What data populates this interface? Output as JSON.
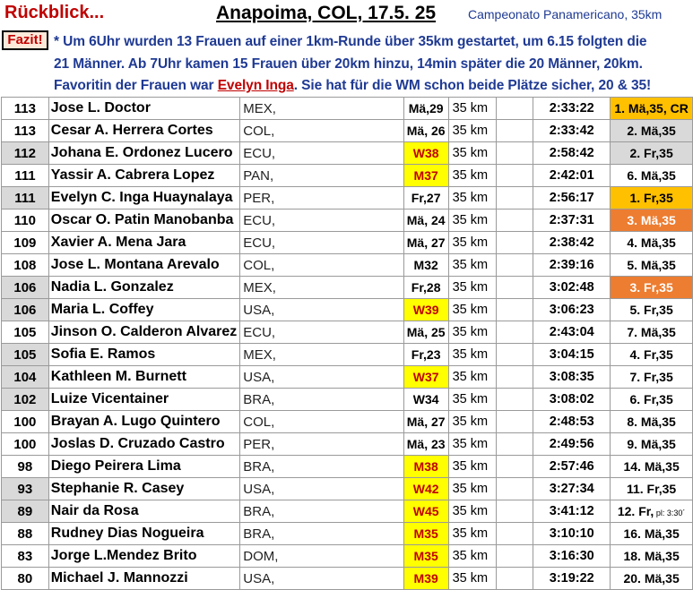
{
  "header": {
    "left": "Rückblick...",
    "middle": "Anapoima, COL, 17.5. 25",
    "right": "Campeonato Panamericano, 35km"
  },
  "fazit": {
    "label": "Fazit!",
    "line1": "* Um 6Uhr wurden 13 Frauen auf einer 1km-Runde über 35km gestartet, um 6.15 folgten die",
    "line2": "21 Männer. Ab 7Uhr kamen 15 Frauen über 20km hinzu, 14min später die 20 Männer, 20km.",
    "line3_a": "Favoritin der Frauen war ",
    "line3_name": "Evelyn Inga",
    "line3_b": ". Sie hat für die WM schon beide Plätze sicher, 20 & 35!"
  },
  "colors": {
    "title_red": "#c00000",
    "text_blue": "#1f3a93",
    "gold": "#ffc000",
    "silver": "#d9d9d9",
    "bronze": "#ed7d31",
    "age_highlight": "#ffff00"
  },
  "rows": [
    {
      "pts": "113",
      "name": "Jose L. Doctor",
      "nat": "MEX,",
      "age": "Mä,29",
      "dist": "35 km",
      "time": "2:33:22",
      "result": "1. Mä,35, CR",
      "medal": "gold"
    },
    {
      "pts": "113",
      "name": "Cesar A. Herrera Cortes",
      "nat": "COL,",
      "age": "Mä, 26",
      "dist": "35 km",
      "time": "2:33:42",
      "result": "2. Mä,35",
      "medal": "silver"
    },
    {
      "pts": "112",
      "name": "Johana E. Ordonez Lucero",
      "nat": "ECU,",
      "age": "W38",
      "dist": "35 km",
      "time": "2:58:42",
      "result": "2. Fr,35",
      "medal": "silver",
      "grey": true,
      "yellow": true
    },
    {
      "pts": "111",
      "name": "Yassir A. Cabrera Lopez",
      "nat": "PAN,",
      "age": "M37",
      "dist": "35 km",
      "time": "2:42:01",
      "result": "6. Mä,35",
      "yellow": true
    },
    {
      "pts": "111",
      "name": "Evelyn C. Inga Huaynalaya",
      "nat": "PER,",
      "age": "Fr,27",
      "dist": "35 km",
      "time": "2:56:17",
      "result": "1. Fr,35",
      "medal": "gold",
      "grey": true
    },
    {
      "pts": "110",
      "name": "Oscar O. Patin Manobanba",
      "nat": "ECU,",
      "age": "Mä, 24",
      "dist": "35 km",
      "time": "2:37:31",
      "result": "3. Mä,35",
      "medal": "bronze"
    },
    {
      "pts": "109",
      "name": "Xavier A. Mena Jara",
      "nat": "ECU,",
      "age": "Mä, 27",
      "dist": "35 km",
      "time": "2:38:42",
      "result": "4. Mä,35"
    },
    {
      "pts": "108",
      "name": "Jose L. Montana Arevalo",
      "nat": "COL,",
      "age": "M32",
      "dist": "35 km",
      "time": "2:39:16",
      "result": "5. Mä,35"
    },
    {
      "pts": "106",
      "name": "Nadia L. Gonzalez",
      "nat": "MEX,",
      "age": "Fr,28",
      "dist": "35 km",
      "time": "3:02:48",
      "result": "3. Fr,35",
      "medal": "bronze",
      "grey": true
    },
    {
      "pts": "106",
      "name": "Maria L. Coffey",
      "nat": "USA,",
      "age": "W39",
      "dist": "35 km",
      "time": "3:06:23",
      "result": "5. Fr,35",
      "grey": true,
      "yellow": true
    },
    {
      "pts": "105",
      "name": "Jinson O. Calderon Alvarez",
      "nat": "ECU,",
      "age": "Mä, 25",
      "dist": "35 km",
      "time": "2:43:04",
      "result": "7. Mä,35"
    },
    {
      "pts": "105",
      "name": "Sofia E. Ramos",
      "nat": "MEX,",
      "age": "Fr,23",
      "dist": "35 km",
      "time": "3:04:15",
      "result": "4. Fr,35",
      "grey": true
    },
    {
      "pts": "104",
      "name": "Kathleen M. Burnett",
      "nat": "USA,",
      "age": "W37",
      "dist": "35 km",
      "time": "3:08:35",
      "result": "7. Fr,35",
      "grey": true,
      "yellow": true
    },
    {
      "pts": "102",
      "name": "Luize Vicentainer",
      "nat": "BRA,",
      "age": "W34",
      "dist": "35 km",
      "time": "3:08:02",
      "result": "6. Fr,35",
      "grey": true
    },
    {
      "pts": "100",
      "name": "Brayan A. Lugo Quintero",
      "nat": "COL,",
      "age": "Mä, 27",
      "dist": "35 km",
      "time": "2:48:53",
      "result": "8. Mä,35"
    },
    {
      "pts": "100",
      "name": "Joslas D. Cruzado Castro",
      "nat": "PER,",
      "age": "Mä, 23",
      "dist": "35 km",
      "time": "2:49:56",
      "result": "9. Mä,35"
    },
    {
      "pts": "98",
      "name": "Diego Peirera Lima",
      "nat": "BRA,",
      "age": "M38",
      "dist": "35 km",
      "time": "2:57:46",
      "result": "14. Mä,35",
      "yellow": true
    },
    {
      "pts": "93",
      "name": "Stephanie R. Casey",
      "nat": "USA,",
      "age": "W42",
      "dist": "35 km",
      "time": "3:27:34",
      "result": "11. Fr,35",
      "grey": true,
      "yellow": true
    },
    {
      "pts": "89",
      "name": "Nair da Rosa",
      "nat": "BRA,",
      "age": "W45",
      "dist": "35 km",
      "time": "3:41:12",
      "result": "12. Fr,",
      "result_small": " pl: 3:30´",
      "grey": true,
      "yellow": true
    },
    {
      "pts": "88",
      "name": "Rudney Dias Nogueira",
      "nat": "BRA,",
      "age": "M35",
      "dist": "35 km",
      "time": "3:10:10",
      "result": "16. Mä,35",
      "yellow": true
    },
    {
      "pts": "83",
      "name": "Jorge L.Mendez Brito",
      "nat": "DOM,",
      "age": "M35",
      "dist": "35 km",
      "time": "3:16:30",
      "result": "18. Mä,35",
      "yellow": true
    },
    {
      "pts": "80",
      "name": "Michael J. Mannozzi",
      "nat": "USA,",
      "age": "M39",
      "dist": "35 km",
      "time": "3:19:22",
      "result": "20. Mä,35",
      "yellow": true
    }
  ]
}
